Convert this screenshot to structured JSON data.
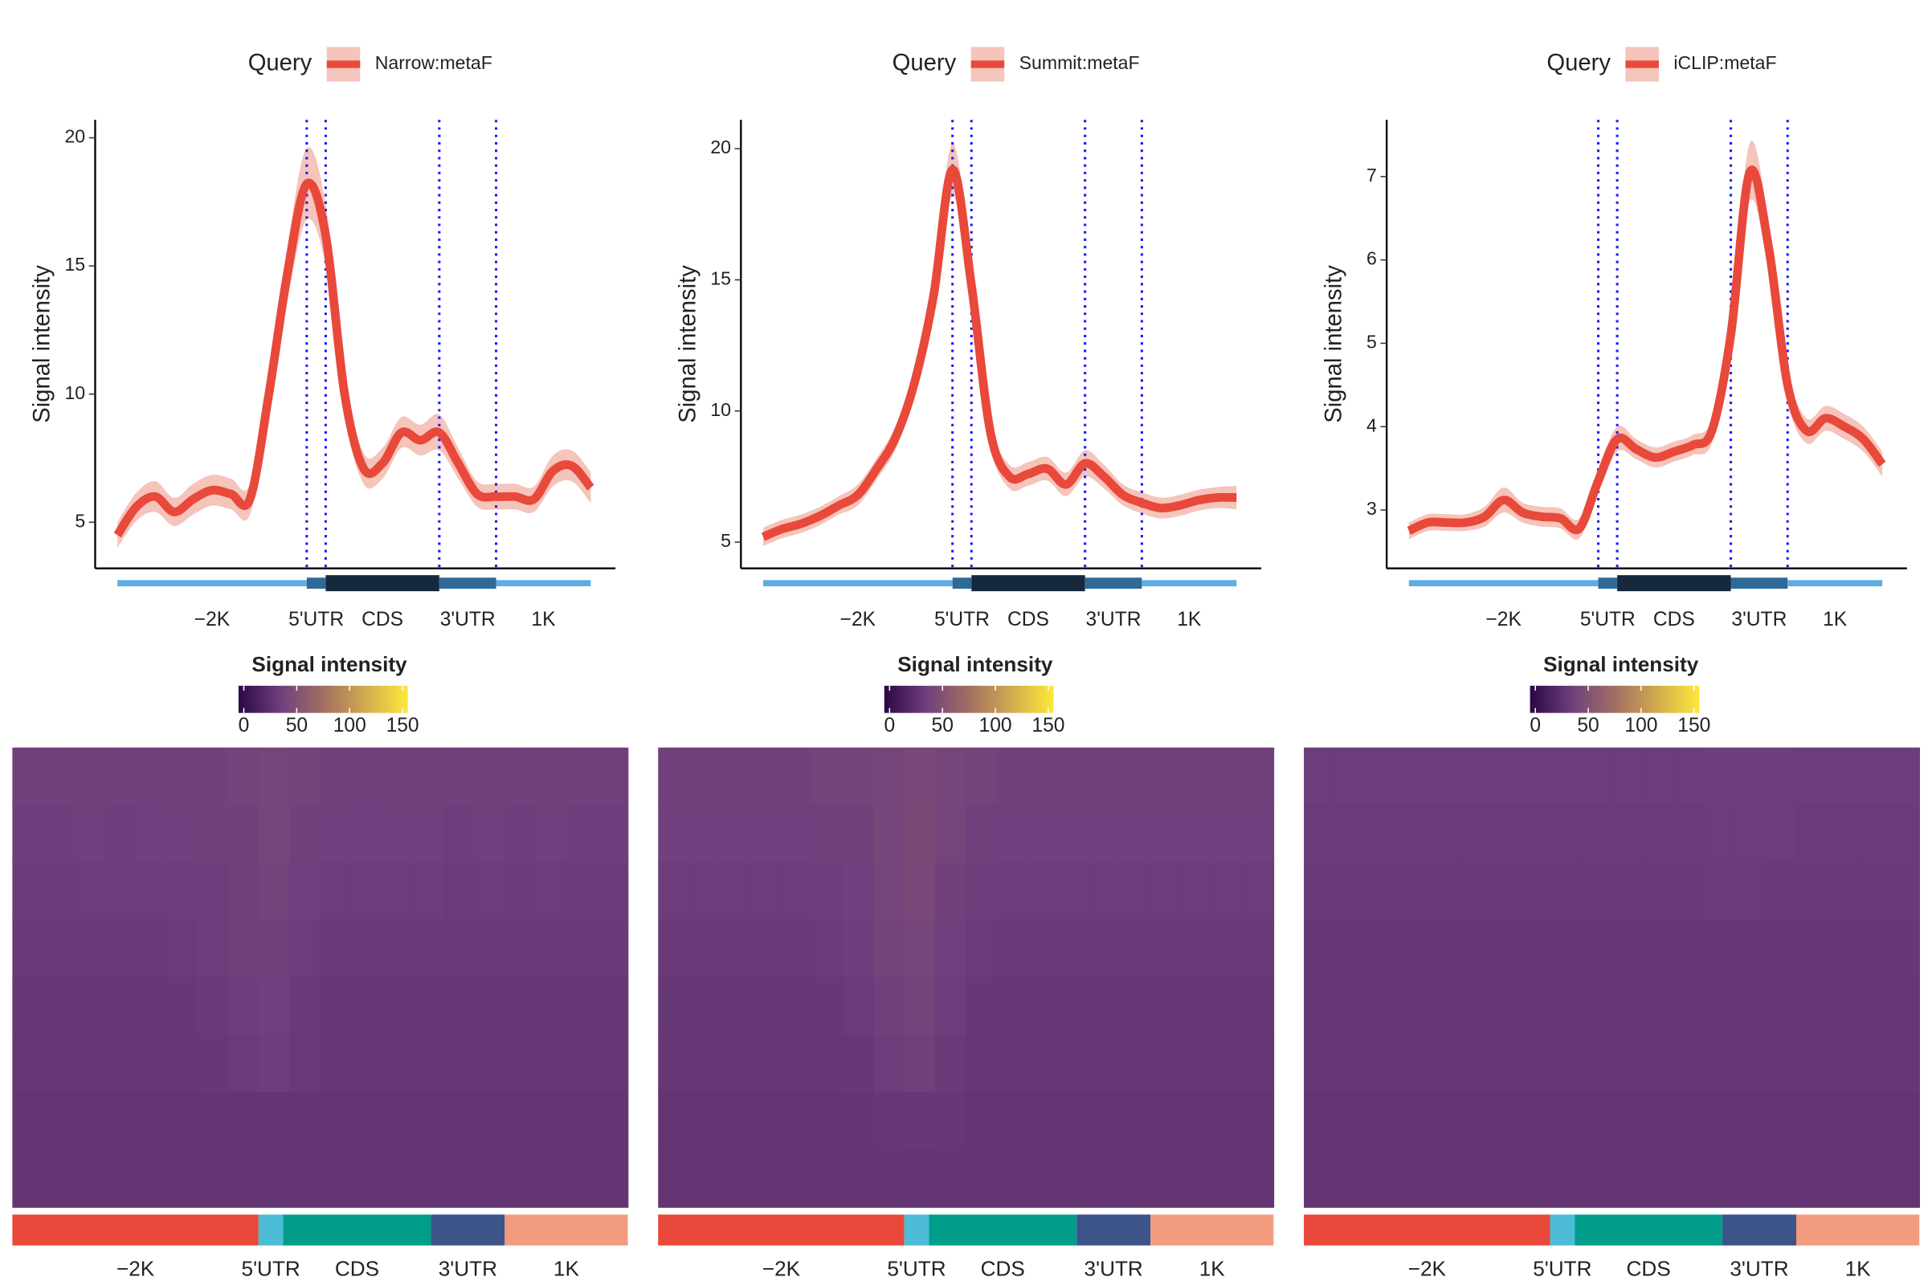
{
  "chart_data": [
    {
      "type": "line",
      "legend_title": "Query",
      "y_label": "Signal intensity",
      "x": [
        0,
        4,
        8,
        12,
        16,
        20,
        24,
        28,
        32,
        36,
        40,
        44,
        48,
        52,
        56,
        60,
        64,
        68,
        72,
        76,
        80,
        84,
        88,
        92,
        96,
        100
      ],
      "xlim": [
        0,
        100
      ],
      "ylim": [
        3.2,
        20.7
      ],
      "yticks": [
        5,
        10,
        15,
        20
      ],
      "series": [
        {
          "name": "Narrow:metaF",
          "color": "#e8493a",
          "band_color": "#f5c4bb",
          "values": [
            4.5,
            5.6,
            6.0,
            5.4,
            5.9,
            6.25,
            6.1,
            5.9,
            10.0,
            14.8,
            18.2,
            16.2,
            10.0,
            7.1,
            7.3,
            8.5,
            8.2,
            8.5,
            7.3,
            6.1,
            6.0,
            6.0,
            5.9,
            7.0,
            7.2,
            6.35
          ],
          "band": [
            0.5,
            0.55,
            0.6,
            0.55,
            0.6,
            0.6,
            0.6,
            0.6,
            0.8,
            1.1,
            1.4,
            1.2,
            0.8,
            0.6,
            0.6,
            0.6,
            0.6,
            0.7,
            0.6,
            0.5,
            0.5,
            0.5,
            0.5,
            0.6,
            0.6,
            0.6
          ]
        }
      ],
      "boundaries": [
        40,
        44,
        68,
        80
      ],
      "boundary_color": "#1a1aff",
      "regions": [
        {
          "label": "−2K",
          "start": 0,
          "end": 40,
          "model_color": "#5dade2",
          "color": "#e8493a"
        },
        {
          "label": "5'UTR",
          "start": 40,
          "end": 44,
          "model_color": "#2e6a96",
          "color": "#4dbcd6"
        },
        {
          "label": "CDS",
          "start": 44,
          "end": 68,
          "model_color": "#16283d",
          "color": "#009e8a"
        },
        {
          "label": "3'UTR",
          "start": 68,
          "end": 80,
          "model_color": "#2e6a96",
          "color": "#3c5488"
        },
        {
          "label": "1K",
          "start": 80,
          "end": 100,
          "model_color": "#5dade2",
          "color": "#f39b7f"
        }
      ],
      "heatmap": {
        "title": "Signal intensity",
        "clim": [
          -5,
          155
        ],
        "ticks": [
          0,
          50,
          100,
          150
        ],
        "stops": [
          {
            "value": -5,
            "color": "#2a0845"
          },
          {
            "value": 35,
            "color": "#703f7d"
          },
          {
            "value": 80,
            "color": "#a87560"
          },
          {
            "value": 155,
            "color": "#ffe83a"
          }
        ],
        "matrix": [
          [
            36,
            36,
            37,
            36,
            36,
            37,
            37,
            38,
            40,
            38,
            37,
            36,
            37,
            37,
            36,
            37,
            36,
            37,
            36,
            36
          ],
          [
            34,
            34,
            35,
            34,
            35,
            35,
            36,
            37,
            40,
            37,
            35,
            35,
            35,
            35,
            34,
            35,
            34,
            35,
            34,
            34
          ],
          [
            32,
            32,
            33,
            33,
            33,
            33,
            34,
            36,
            38,
            35,
            33,
            33,
            33,
            33,
            32,
            33,
            32,
            33,
            32,
            32
          ],
          [
            31,
            31,
            31,
            31,
            31,
            32,
            33,
            36,
            36,
            33,
            31,
            31,
            31,
            31,
            31,
            31,
            31,
            31,
            31,
            31
          ],
          [
            30,
            30,
            30,
            30,
            30,
            30,
            31,
            34,
            35,
            31,
            30,
            30,
            30,
            30,
            30,
            30,
            30,
            30,
            30,
            30
          ],
          [
            29,
            29,
            29,
            29,
            29,
            29,
            30,
            32,
            34,
            31,
            29,
            29,
            29,
            29,
            29,
            29,
            29,
            29,
            29,
            29
          ],
          [
            28,
            28,
            28,
            28,
            28,
            28,
            28,
            28,
            28,
            28,
            28,
            28,
            28,
            28,
            28,
            28,
            28,
            28,
            28,
            28
          ],
          [
            28,
            28,
            28,
            28,
            28,
            28,
            28,
            28,
            28,
            28,
            28,
            28,
            28,
            28,
            28,
            28,
            28,
            28,
            28,
            28
          ]
        ]
      }
    },
    {
      "type": "line",
      "legend_title": "Query",
      "y_label": "Signal intensity",
      "x": [
        0,
        4,
        8,
        12,
        16,
        20,
        24,
        28,
        32,
        36,
        40,
        44,
        48,
        52,
        56,
        60,
        64,
        68,
        72,
        76,
        80,
        84,
        88,
        92,
        96,
        100
      ],
      "xlim": [
        0,
        100
      ],
      "ylim": [
        4.0,
        21.1
      ],
      "yticks": [
        5,
        10,
        15,
        20
      ],
      "series": [
        {
          "name": "Summit:metaF",
          "color": "#e8493a",
          "band_color": "#f5c4bb",
          "values": [
            5.2,
            5.5,
            5.7,
            6.0,
            6.4,
            6.8,
            7.8,
            9.0,
            11.1,
            14.4,
            19.2,
            14.8,
            9.2,
            7.5,
            7.6,
            7.8,
            7.2,
            8.0,
            7.5,
            6.8,
            6.5,
            6.3,
            6.4,
            6.6,
            6.7,
            6.7
          ],
          "band": [
            0.35,
            0.35,
            0.35,
            0.35,
            0.35,
            0.4,
            0.4,
            0.45,
            0.5,
            0.7,
            1.0,
            0.8,
            0.5,
            0.45,
            0.45,
            0.45,
            0.45,
            0.5,
            0.45,
            0.4,
            0.4,
            0.4,
            0.4,
            0.4,
            0.4,
            0.45
          ]
        }
      ],
      "boundaries": [
        40,
        44,
        68,
        80
      ],
      "boundary_color": "#1a1aff",
      "regions": [
        {
          "label": "−2K",
          "start": 0,
          "end": 40,
          "model_color": "#5dade2",
          "color": "#e8493a"
        },
        {
          "label": "5'UTR",
          "start": 40,
          "end": 44,
          "model_color": "#2e6a96",
          "color": "#4dbcd6"
        },
        {
          "label": "CDS",
          "start": 44,
          "end": 68,
          "model_color": "#16283d",
          "color": "#009e8a"
        },
        {
          "label": "3'UTR",
          "start": 68,
          "end": 80,
          "model_color": "#2e6a96",
          "color": "#3c5488"
        },
        {
          "label": "1K",
          "start": 80,
          "end": 100,
          "model_color": "#5dade2",
          "color": "#f39b7f"
        }
      ],
      "heatmap": {
        "title": "Signal intensity",
        "clim": [
          -5,
          155
        ],
        "ticks": [
          0,
          50,
          100,
          150
        ],
        "stops": [
          {
            "value": -5,
            "color": "#2a0845"
          },
          {
            "value": 35,
            "color": "#703f7d"
          },
          {
            "value": 80,
            "color": "#a87560"
          },
          {
            "value": 155,
            "color": "#ffe83a"
          }
        ],
        "matrix": [
          [
            37,
            37,
            37,
            37,
            37,
            38,
            38,
            40,
            42,
            40,
            38,
            37,
            37,
            37,
            37,
            37,
            37,
            37,
            37,
            37
          ],
          [
            35,
            35,
            35,
            35,
            35,
            36,
            37,
            40,
            43,
            39,
            36,
            35,
            35,
            35,
            35,
            35,
            35,
            35,
            35,
            35
          ],
          [
            33,
            33,
            33,
            33,
            33,
            34,
            35,
            39,
            42,
            37,
            34,
            33,
            33,
            33,
            33,
            33,
            33,
            33,
            33,
            33
          ],
          [
            31,
            31,
            31,
            31,
            31,
            32,
            34,
            38,
            40,
            35,
            32,
            31,
            31,
            31,
            31,
            31,
            31,
            31,
            31,
            31
          ],
          [
            30,
            30,
            30,
            30,
            30,
            30,
            32,
            36,
            38,
            33,
            30,
            30,
            30,
            30,
            30,
            30,
            30,
            30,
            30,
            30
          ],
          [
            29,
            29,
            29,
            29,
            29,
            29,
            30,
            33,
            36,
            31,
            29,
            29,
            29,
            29,
            29,
            29,
            29,
            29,
            29,
            29
          ],
          [
            28,
            28,
            28,
            28,
            28,
            28,
            28,
            29,
            30,
            29,
            28,
            28,
            28,
            28,
            28,
            28,
            28,
            28,
            28,
            28
          ],
          [
            28,
            28,
            28,
            28,
            28,
            28,
            28,
            28,
            28,
            28,
            28,
            28,
            28,
            28,
            28,
            28,
            28,
            28,
            28,
            28
          ]
        ]
      }
    },
    {
      "type": "line",
      "legend_title": "Query",
      "y_label": "Signal intensity",
      "x": [
        0,
        4,
        8,
        12,
        16,
        20,
        24,
        28,
        32,
        36,
        40,
        44,
        48,
        52,
        56,
        60,
        64,
        68,
        72,
        76,
        80,
        84,
        88,
        92,
        96,
        100
      ],
      "xlim": [
        0,
        100
      ],
      "ylim": [
        2.3,
        7.68
      ],
      "yticks": [
        3,
        4,
        5,
        6,
        7
      ],
      "series": [
        {
          "name": "iCLIP:metaF",
          "color": "#e8493a",
          "band_color": "#f5c4bb",
          "values": [
            2.75,
            2.85,
            2.85,
            2.85,
            2.92,
            3.12,
            2.97,
            2.92,
            2.9,
            2.78,
            3.35,
            3.85,
            3.73,
            3.63,
            3.7,
            3.78,
            3.95,
            5.1,
            7.05,
            6.15,
            4.5,
            3.95,
            4.1,
            4.0,
            3.85,
            3.55
          ],
          "band": [
            0.1,
            0.1,
            0.1,
            0.1,
            0.12,
            0.15,
            0.12,
            0.12,
            0.12,
            0.12,
            0.15,
            0.15,
            0.12,
            0.12,
            0.12,
            0.12,
            0.15,
            0.25,
            0.35,
            0.3,
            0.2,
            0.15,
            0.15,
            0.15,
            0.15,
            0.15
          ]
        }
      ],
      "boundaries": [
        40,
        44,
        68,
        80
      ],
      "boundary_color": "#1a1aff",
      "regions": [
        {
          "label": "−2K",
          "start": 0,
          "end": 40,
          "model_color": "#5dade2",
          "color": "#e8493a"
        },
        {
          "label": "5'UTR",
          "start": 40,
          "end": 44,
          "model_color": "#2e6a96",
          "color": "#4dbcd6"
        },
        {
          "label": "CDS",
          "start": 44,
          "end": 68,
          "model_color": "#16283d",
          "color": "#009e8a"
        },
        {
          "label": "3'UTR",
          "start": 68,
          "end": 80,
          "model_color": "#2e6a96",
          "color": "#3c5488"
        },
        {
          "label": "1K",
          "start": 80,
          "end": 100,
          "model_color": "#5dade2",
          "color": "#f39b7f"
        }
      ],
      "heatmap": {
        "title": "Signal intensity",
        "clim": [
          -5,
          155
        ],
        "ticks": [
          0,
          50,
          100,
          150
        ],
        "stops": [
          {
            "value": -5,
            "color": "#2a0845"
          },
          {
            "value": 35,
            "color": "#703f7d"
          },
          {
            "value": 80,
            "color": "#a87560"
          },
          {
            "value": 155,
            "color": "#ffe83a"
          }
        ],
        "matrix": [
          [
            33,
            33,
            33,
            33,
            33,
            33,
            33,
            33,
            33,
            33,
            33,
            33,
            33,
            34,
            34,
            34,
            33,
            33,
            33,
            33
          ],
          [
            32,
            32,
            32,
            32,
            32,
            32,
            32,
            32,
            32,
            32,
            32,
            32,
            32,
            33,
            33,
            33,
            32,
            32,
            32,
            32
          ],
          [
            31,
            31,
            31,
            31,
            31,
            31,
            31,
            31,
            31,
            31,
            31,
            31,
            31,
            32,
            32,
            31,
            31,
            31,
            31,
            31
          ],
          [
            30,
            30,
            30,
            30,
            30,
            30,
            30,
            30,
            30,
            30,
            30,
            30,
            30,
            30,
            30,
            30,
            30,
            30,
            30,
            30
          ],
          [
            29,
            29,
            29,
            29,
            29,
            29,
            29,
            29,
            29,
            29,
            29,
            29,
            29,
            29,
            29,
            29,
            29,
            29,
            29,
            29
          ],
          [
            29,
            29,
            29,
            29,
            29,
            29,
            29,
            29,
            29,
            29,
            29,
            29,
            29,
            29,
            29,
            29,
            29,
            29,
            29,
            29
          ],
          [
            28,
            28,
            28,
            28,
            28,
            28,
            28,
            28,
            28,
            28,
            28,
            28,
            28,
            28,
            28,
            28,
            28,
            28,
            28,
            28
          ],
          [
            28,
            28,
            28,
            28,
            28,
            28,
            28,
            28,
            28,
            28,
            28,
            28,
            28,
            28,
            28,
            28,
            28,
            28,
            28,
            28
          ]
        ]
      }
    }
  ]
}
